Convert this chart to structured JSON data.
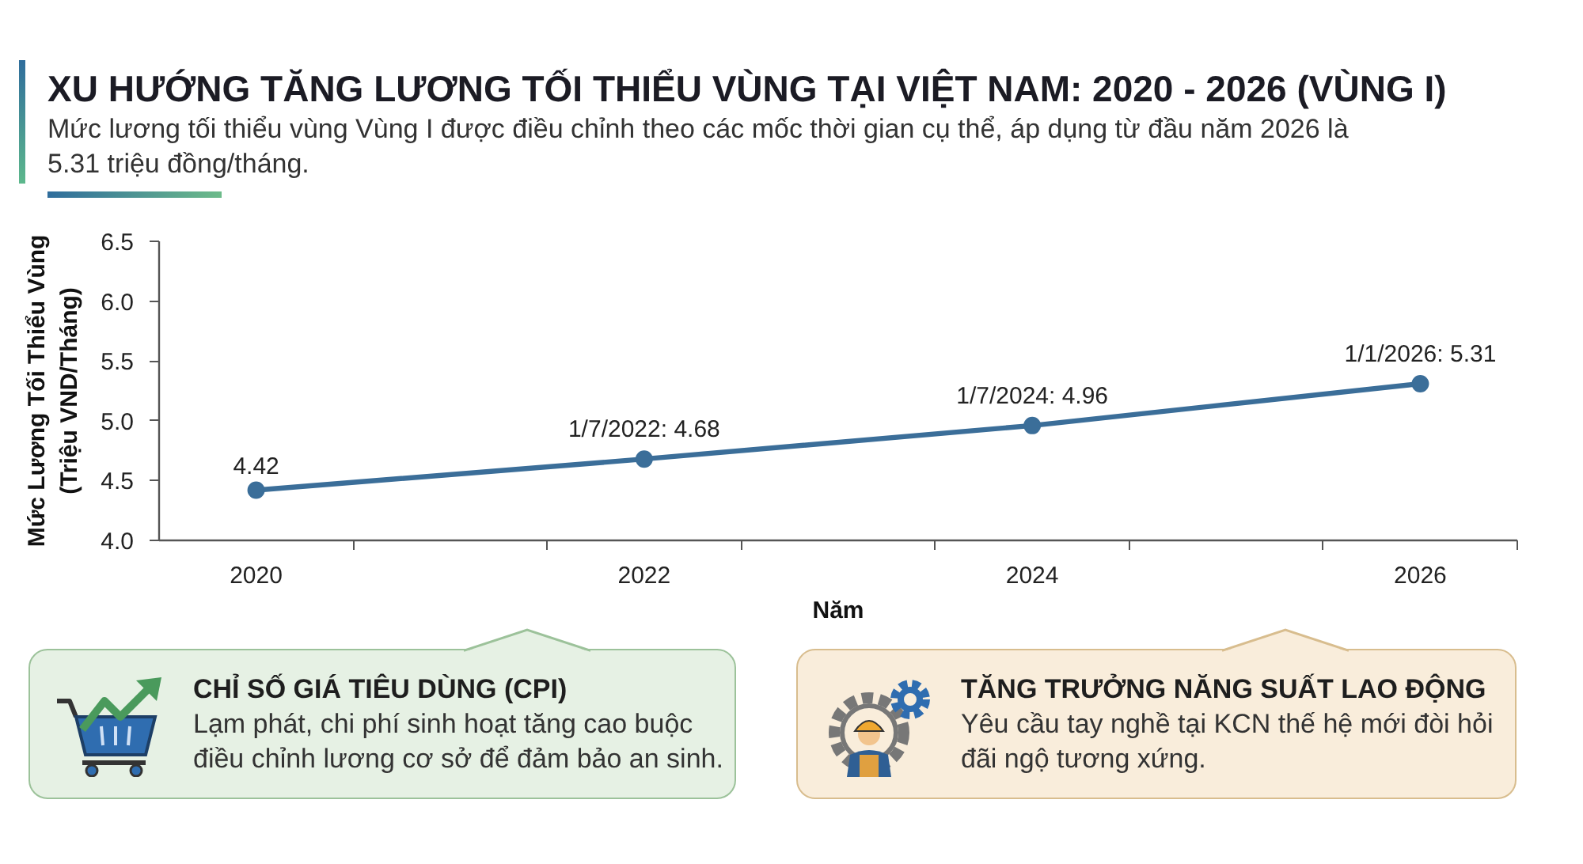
{
  "chart_data": {
    "type": "line",
    "title": "XU HƯỚNG TĂNG LƯƠNG TỐI THIỂU VÙNG TẠI VIỆT NAM: 2020 - 2026 (VÙNG I)",
    "subtitle": "Mức lương tối thiểu vùng Vùng I được điều chỉnh theo các mốc thời gian cụ thể, áp dụng từ đầu năm 2026 là 5.31 triệu đồng/tháng.",
    "xlabel": "Năm",
    "ylabel": "Mức Lương Tối Thiểu Vùng\n(Triệu VND/Tháng)",
    "x": [
      2020,
      2022,
      2024,
      2026
    ],
    "series": [
      {
        "color": "#3b6e99",
        "values": [
          4.42,
          4.68,
          4.96,
          5.31
        ],
        "value_labels": [
          "4.42",
          "1/7/2022: 4.68",
          "1/7/2024: 4.96",
          "1/1/2026: 5.31"
        ]
      }
    ],
    "marker": "circle",
    "line_style": "solid",
    "xlim": [
      2019.5,
      2026.5
    ],
    "xticks": [
      2020,
      {
        "value": 2020.5,
        "label": null
      },
      {
        "value": 2021.5,
        "label": null
      },
      2022,
      {
        "value": 2022.5,
        "label": null
      },
      {
        "value": 2023.5,
        "label": null
      },
      2024,
      {
        "value": 2024.5,
        "label": null
      },
      {
        "value": 2025.5,
        "label": null
      },
      2026,
      {
        "value": 2026.5,
        "label": null
      }
    ],
    "ylim": [
      4,
      6.5
    ],
    "yticks": [
      {
        "value": 4,
        "label": "4.0"
      },
      4.5,
      {
        "value": 5,
        "label": "5.0"
      },
      5.5,
      {
        "value": 6,
        "label": "6.0"
      },
      6.5
    ],
    "annotations": [
      "CHỈ SỐ GIÁ TIÊU DÙNG (CPI)",
      "Lạm phát, chi phí sinh hoạt tăng cao buộc điều chỉnh lương cơ sở để đảm bảo an sinh.",
      "TĂNG TRƯỞNG NĂNG SUẤT LAO ĐỘNG",
      "Yêu cầu tay nghề tại KCN thế hệ mới đòi hỏi đãi ngộ tương xứng."
    ]
  }
}
